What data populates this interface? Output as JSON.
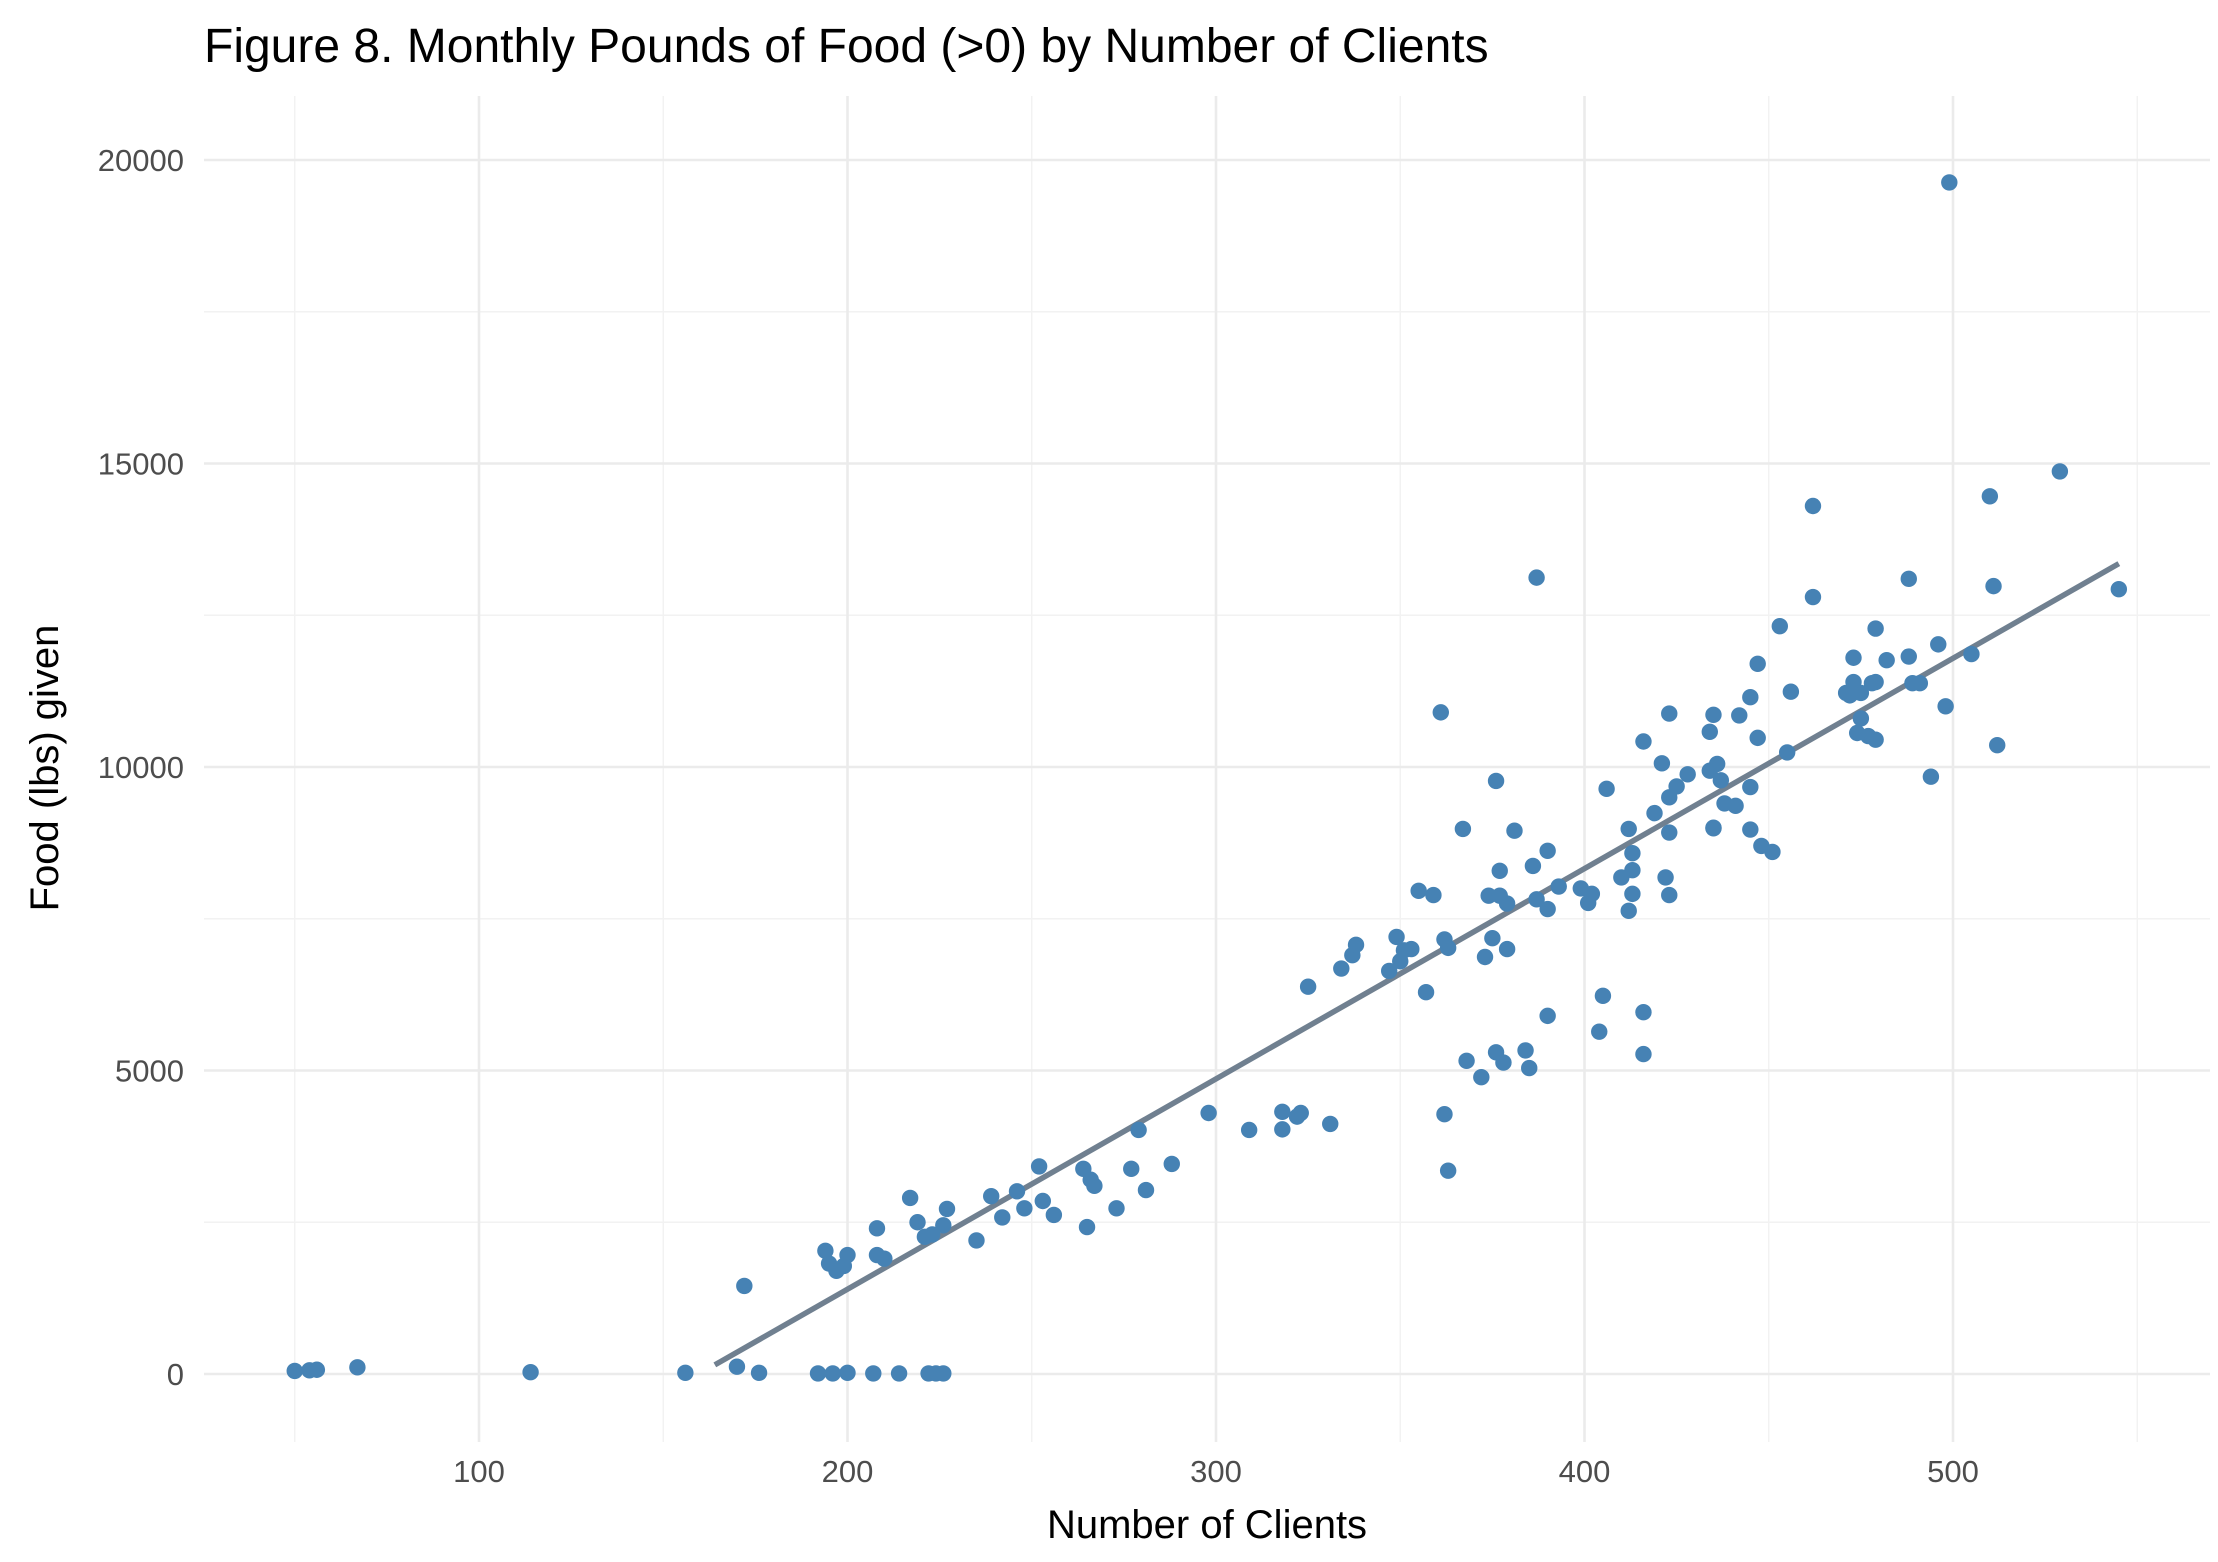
{
  "chart_data": {
    "type": "scatter",
    "title": "Figure 8. Monthly Pounds of Food (>0) by Number of Clients",
    "xlabel": "Number of Clients",
    "ylabel": "Food (lbs) given",
    "xlim": [
      30,
      560
    ],
    "ylim": [
      -1000,
      21000
    ],
    "x_ticks": [
      100,
      200,
      300,
      400,
      500
    ],
    "y_ticks": [
      0,
      5000,
      10000,
      15000,
      20000
    ],
    "x_tick_labels": [
      "100",
      "200",
      "300",
      "400",
      "500"
    ],
    "y_tick_labels": [
      "0",
      "5000",
      "10000",
      "15000",
      "20000"
    ],
    "grid": true,
    "point_color": "#4682B4",
    "trend_color": "#708090",
    "trend_line": {
      "x": [
        164,
        545
      ],
      "y": [
        150,
        13350
      ]
    },
    "points": [
      [
        50,
        50
      ],
      [
        54,
        60
      ],
      [
        56,
        70
      ],
      [
        67,
        110
      ],
      [
        114,
        30
      ],
      [
        156,
        20
      ],
      [
        170,
        120
      ],
      [
        176,
        20
      ],
      [
        192,
        10
      ],
      [
        196,
        10
      ],
      [
        200,
        20
      ],
      [
        207,
        10
      ],
      [
        214,
        10
      ],
      [
        222,
        10
      ],
      [
        224,
        10
      ],
      [
        226,
        10
      ],
      [
        172,
        1450
      ],
      [
        194,
        2030
      ],
      [
        195,
        1820
      ],
      [
        197,
        1700
      ],
      [
        199,
        1780
      ],
      [
        200,
        1960
      ],
      [
        208,
        1960
      ],
      [
        208,
        2400
      ],
      [
        210,
        1900
      ],
      [
        217,
        2900
      ],
      [
        219,
        2500
      ],
      [
        221,
        2260
      ],
      [
        223,
        2300
      ],
      [
        226,
        2450
      ],
      [
        227,
        2720
      ],
      [
        235,
        2200
      ],
      [
        239,
        2930
      ],
      [
        242,
        2580
      ],
      [
        246,
        3010
      ],
      [
        248,
        2730
      ],
      [
        252,
        3420
      ],
      [
        253,
        2850
      ],
      [
        256,
        2620
      ],
      [
        264,
        3380
      ],
      [
        265,
        2420
      ],
      [
        266,
        3200
      ],
      [
        267,
        3100
      ],
      [
        273,
        2730
      ],
      [
        277,
        3380
      ],
      [
        279,
        4020
      ],
      [
        281,
        3030
      ],
      [
        288,
        3460
      ],
      [
        298,
        4300
      ],
      [
        309,
        4020
      ],
      [
        318,
        4320
      ],
      [
        318,
        4030
      ],
      [
        322,
        4240
      ],
      [
        323,
        4300
      ],
      [
        331,
        4120
      ],
      [
        325,
        6380
      ],
      [
        334,
        6680
      ],
      [
        337,
        6900
      ],
      [
        338,
        7070
      ],
      [
        347,
        6640
      ],
      [
        349,
        7200
      ],
      [
        350,
        6800
      ],
      [
        351,
        6980
      ],
      [
        353,
        7000
      ],
      [
        355,
        7960
      ],
      [
        357,
        6290
      ],
      [
        359,
        7890
      ],
      [
        361,
        10900
      ],
      [
        362,
        7160
      ],
      [
        363,
        7020
      ],
      [
        362,
        4280
      ],
      [
        363,
        3350
      ],
      [
        367,
        8980
      ],
      [
        368,
        5160
      ],
      [
        372,
        4890
      ],
      [
        373,
        6870
      ],
      [
        374,
        7880
      ],
      [
        375,
        7180
      ],
      [
        376,
        5300
      ],
      [
        376,
        9770
      ],
      [
        377,
        7880
      ],
      [
        377,
        8290
      ],
      [
        378,
        5130
      ],
      [
        379,
        7750
      ],
      [
        379,
        7000
      ],
      [
        381,
        8950
      ],
      [
        384,
        5330
      ],
      [
        385,
        5040
      ],
      [
        386,
        8370
      ],
      [
        387,
        7820
      ],
      [
        387,
        13120
      ],
      [
        390,
        8620
      ],
      [
        390,
        7660
      ],
      [
        390,
        5900
      ],
      [
        393,
        8030
      ],
      [
        399,
        8000
      ],
      [
        401,
        7760
      ],
      [
        402,
        7910
      ],
      [
        404,
        5640
      ],
      [
        405,
        6230
      ],
      [
        406,
        9640
      ],
      [
        410,
        8180
      ],
      [
        412,
        8980
      ],
      [
        412,
        7630
      ],
      [
        413,
        7910
      ],
      [
        413,
        8580
      ],
      [
        413,
        8300
      ],
      [
        416,
        10420
      ],
      [
        416,
        5960
      ],
      [
        416,
        5270
      ],
      [
        419,
        9240
      ],
      [
        421,
        10060
      ],
      [
        422,
        8180
      ],
      [
        423,
        10880
      ],
      [
        423,
        9500
      ],
      [
        423,
        8920
      ],
      [
        423,
        7890
      ],
      [
        425,
        9680
      ],
      [
        428,
        9880
      ],
      [
        434,
        10580
      ],
      [
        434,
        9940
      ],
      [
        435,
        10860
      ],
      [
        435,
        9000
      ],
      [
        435,
        8990
      ],
      [
        436,
        10050
      ],
      [
        437,
        9780
      ],
      [
        438,
        9400
      ],
      [
        441,
        9360
      ],
      [
        442,
        10850
      ],
      [
        445,
        11150
      ],
      [
        445,
        9670
      ],
      [
        445,
        8970
      ],
      [
        447,
        11700
      ],
      [
        447,
        10480
      ],
      [
        448,
        8700
      ],
      [
        451,
        8600
      ],
      [
        453,
        12320
      ],
      [
        455,
        10240
      ],
      [
        456,
        11240
      ],
      [
        462,
        14300
      ],
      [
        462,
        12800
      ],
      [
        471,
        11220
      ],
      [
        472,
        11180
      ],
      [
        473,
        11800
      ],
      [
        473,
        11400
      ],
      [
        474,
        10560
      ],
      [
        475,
        11220
      ],
      [
        475,
        10800
      ],
      [
        477,
        10510
      ],
      [
        478,
        11380
      ],
      [
        479,
        11400
      ],
      [
        479,
        10450
      ],
      [
        479,
        12280
      ],
      [
        482,
        11760
      ],
      [
        488,
        13100
      ],
      [
        488,
        11820
      ],
      [
        489,
        11380
      ],
      [
        491,
        11380
      ],
      [
        494,
        9840
      ],
      [
        496,
        12020
      ],
      [
        498,
        11000
      ],
      [
        499,
        19630
      ],
      [
        505,
        11860
      ],
      [
        510,
        14460
      ],
      [
        511,
        12980
      ],
      [
        512,
        10360
      ],
      [
        529,
        14870
      ],
      [
        545,
        12930
      ]
    ]
  }
}
